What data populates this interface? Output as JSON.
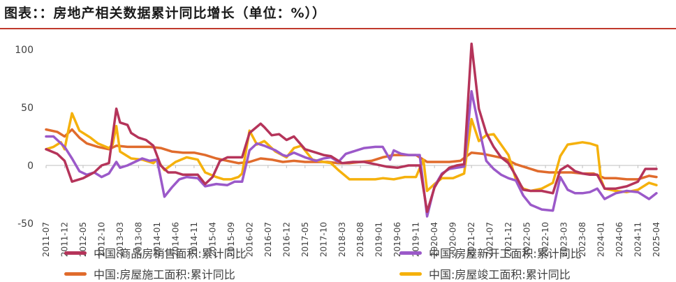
{
  "title": "图表：：房地产相关数据累计同比增长（单位：%））",
  "chart_data": {
    "type": "line",
    "ylim": [
      -50,
      105
    ],
    "yticks": [
      -50,
      0,
      50,
      100
    ],
    "x_start": "2011-07",
    "x_end": "2025-04",
    "xticks": [
      "2011-07",
      "2011-12",
      "2012-05",
      "2012-10",
      "2013-03",
      "2013-08",
      "2014-01",
      "2014-06",
      "2014-11",
      "2015-04",
      "2015-09",
      "2016-02",
      "2016-07",
      "2016-12",
      "2017-05",
      "2017-10",
      "2018-03",
      "2018-08",
      "2019-01",
      "2019-06",
      "2019-11",
      "2020-04",
      "2020-09",
      "2021-02",
      "2021-07",
      "2021-12",
      "2022-05",
      "2022-10",
      "2023-03",
      "2023-08",
      "2024-01",
      "2024-06",
      "2024-11",
      "2025-04"
    ],
    "series": [
      {
        "name": "中国:商品房销售面积:累计同比",
        "color": "#b5345a",
        "points": [
          [
            "2011-07",
            14
          ],
          [
            "2011-10",
            10
          ],
          [
            "2011-12",
            4
          ],
          [
            "2012-02",
            -14
          ],
          [
            "2012-05",
            -11
          ],
          [
            "2012-08",
            -6
          ],
          [
            "2012-10",
            0
          ],
          [
            "2012-12",
            2
          ],
          [
            "2013-02",
            49
          ],
          [
            "2013-03",
            37
          ],
          [
            "2013-05",
            35
          ],
          [
            "2013-06",
            28
          ],
          [
            "2013-08",
            24
          ],
          [
            "2013-10",
            22
          ],
          [
            "2013-12",
            17
          ],
          [
            "2014-02",
            -0.1
          ],
          [
            "2014-04",
            -6
          ],
          [
            "2014-06",
            -6
          ],
          [
            "2014-08",
            -8
          ],
          [
            "2014-10",
            -8
          ],
          [
            "2014-12",
            -8
          ],
          [
            "2015-02",
            -16
          ],
          [
            "2015-04",
            -10
          ],
          [
            "2015-06",
            4
          ],
          [
            "2015-08",
            7
          ],
          [
            "2015-10",
            7
          ],
          [
            "2015-12",
            7
          ],
          [
            "2016-02",
            28
          ],
          [
            "2016-05",
            36
          ],
          [
            "2016-06",
            33
          ],
          [
            "2016-08",
            26
          ],
          [
            "2016-10",
            27
          ],
          [
            "2016-12",
            22
          ],
          [
            "2017-02",
            25
          ],
          [
            "2017-05",
            14
          ],
          [
            "2017-08",
            11
          ],
          [
            "2017-10",
            9
          ],
          [
            "2017-12",
            8
          ],
          [
            "2018-03",
            2
          ],
          [
            "2018-06",
            3
          ],
          [
            "2018-09",
            3
          ],
          [
            "2018-12",
            1
          ],
          [
            "2019-03",
            -1
          ],
          [
            "2019-06",
            -2
          ],
          [
            "2019-09",
            0
          ],
          [
            "2019-12",
            0
          ],
          [
            "2020-02",
            -40
          ],
          [
            "2020-04",
            -19
          ],
          [
            "2020-06",
            -8
          ],
          [
            "2020-08",
            -2
          ],
          [
            "2020-10",
            0
          ],
          [
            "2020-12",
            1
          ],
          [
            "2021-02",
            105
          ],
          [
            "2021-04",
            49
          ],
          [
            "2021-06",
            28
          ],
          [
            "2021-08",
            16
          ],
          [
            "2021-10",
            7
          ],
          [
            "2021-12",
            2
          ],
          [
            "2022-02",
            -9
          ],
          [
            "2022-04",
            -21
          ],
          [
            "2022-06",
            -22
          ],
          [
            "2022-09",
            -22
          ],
          [
            "2022-12",
            -24
          ],
          [
            "2023-02",
            -4
          ],
          [
            "2023-04",
            0
          ],
          [
            "2023-06",
            -5
          ],
          [
            "2023-08",
            -7
          ],
          [
            "2023-10",
            -8
          ],
          [
            "2023-12",
            -8
          ],
          [
            "2024-02",
            -20
          ],
          [
            "2024-05",
            -20
          ],
          [
            "2024-08",
            -18
          ],
          [
            "2024-11",
            -14
          ],
          [
            "2025-01",
            -3
          ],
          [
            "2025-04",
            -3
          ]
        ]
      },
      {
        "name": "中国:房屋新开工面积:累计同比",
        "color": "#9b59c9",
        "points": [
          [
            "2011-07",
            25
          ],
          [
            "2011-09",
            25
          ],
          [
            "2011-12",
            16
          ],
          [
            "2012-02",
            6
          ],
          [
            "2012-04",
            -5
          ],
          [
            "2012-06",
            -8
          ],
          [
            "2012-08",
            -6
          ],
          [
            "2012-10",
            -10
          ],
          [
            "2012-12",
            -7
          ],
          [
            "2013-02",
            3
          ],
          [
            "2013-03",
            -2
          ],
          [
            "2013-05",
            0
          ],
          [
            "2013-07",
            3
          ],
          [
            "2013-09",
            6
          ],
          [
            "2013-11",
            4
          ],
          [
            "2014-01",
            5
          ],
          [
            "2014-03",
            -27
          ],
          [
            "2014-05",
            -19
          ],
          [
            "2014-07",
            -12
          ],
          [
            "2014-09",
            -10
          ],
          [
            "2014-12",
            -11
          ],
          [
            "2015-02",
            -18
          ],
          [
            "2015-05",
            -16
          ],
          [
            "2015-08",
            -17
          ],
          [
            "2015-10",
            -14
          ],
          [
            "2015-12",
            -14
          ],
          [
            "2016-02",
            13
          ],
          [
            "2016-04",
            19
          ],
          [
            "2016-06",
            17
          ],
          [
            "2016-09",
            13
          ],
          [
            "2016-11",
            9
          ],
          [
            "2016-12",
            8
          ],
          [
            "2017-02",
            11
          ],
          [
            "2017-05",
            7
          ],
          [
            "2017-08",
            4
          ],
          [
            "2017-10",
            6
          ],
          [
            "2017-12",
            7
          ],
          [
            "2018-02",
            3
          ],
          [
            "2018-04",
            10
          ],
          [
            "2018-06",
            12
          ],
          [
            "2018-09",
            15
          ],
          [
            "2018-12",
            16
          ],
          [
            "2019-02",
            16
          ],
          [
            "2019-04",
            5
          ],
          [
            "2019-05",
            13
          ],
          [
            "2019-07",
            10
          ],
          [
            "2019-09",
            9
          ],
          [
            "2019-12",
            9
          ],
          [
            "2020-02",
            -44
          ],
          [
            "2020-04",
            -18
          ],
          [
            "2020-06",
            -7
          ],
          [
            "2020-08",
            -3
          ],
          [
            "2020-10",
            -2
          ],
          [
            "2020-12",
            -1
          ],
          [
            "2021-02",
            64
          ],
          [
            "2021-04",
            33
          ],
          [
            "2021-06",
            4
          ],
          [
            "2021-08",
            -3
          ],
          [
            "2021-10",
            -8
          ],
          [
            "2021-12",
            -11
          ],
          [
            "2022-02",
            -13
          ],
          [
            "2022-04",
            -26
          ],
          [
            "2022-06",
            -34
          ],
          [
            "2022-09",
            -38
          ],
          [
            "2022-12",
            -39
          ],
          [
            "2023-02",
            -10
          ],
          [
            "2023-04",
            -21
          ],
          [
            "2023-06",
            -24
          ],
          [
            "2023-08",
            -24
          ],
          [
            "2023-10",
            -23
          ],
          [
            "2023-12",
            -20
          ],
          [
            "2024-02",
            -29
          ],
          [
            "2024-05",
            -24
          ],
          [
            "2024-08",
            -22
          ],
          [
            "2024-11",
            -23
          ],
          [
            "2025-02",
            -29
          ],
          [
            "2025-04",
            -24
          ]
        ]
      },
      {
        "name": "中国:房屋施工面积:累计同比",
        "color": "#e06b2c",
        "points": [
          [
            "2011-07",
            31
          ],
          [
            "2011-10",
            29
          ],
          [
            "2011-12",
            25
          ],
          [
            "2012-02",
            31
          ],
          [
            "2012-04",
            24
          ],
          [
            "2012-06",
            19
          ],
          [
            "2012-09",
            16
          ],
          [
            "2012-12",
            14
          ],
          [
            "2013-02",
            17
          ],
          [
            "2013-05",
            16
          ],
          [
            "2013-08",
            16
          ],
          [
            "2013-11",
            16
          ],
          [
            "2014-02",
            15
          ],
          [
            "2014-05",
            12
          ],
          [
            "2014-08",
            11
          ],
          [
            "2014-11",
            11
          ],
          [
            "2015-02",
            9
          ],
          [
            "2015-05",
            6
          ],
          [
            "2015-08",
            4
          ],
          [
            "2015-11",
            2
          ],
          [
            "2016-02",
            3
          ],
          [
            "2016-05",
            6
          ],
          [
            "2016-08",
            5
          ],
          [
            "2016-11",
            3
          ],
          [
            "2017-02",
            4
          ],
          [
            "2017-05",
            3
          ],
          [
            "2017-08",
            3
          ],
          [
            "2017-11",
            3
          ],
          [
            "2018-02",
            2
          ],
          [
            "2018-05",
            2
          ],
          [
            "2018-08",
            3
          ],
          [
            "2018-11",
            4
          ],
          [
            "2019-02",
            7
          ],
          [
            "2019-05",
            9
          ],
          [
            "2019-08",
            9
          ],
          [
            "2019-11",
            9
          ],
          [
            "2020-02",
            3
          ],
          [
            "2020-05",
            3
          ],
          [
            "2020-08",
            3
          ],
          [
            "2020-11",
            4
          ],
          [
            "2021-02",
            11
          ],
          [
            "2021-05",
            10
          ],
          [
            "2021-08",
            8
          ],
          [
            "2021-11",
            6
          ],
          [
            "2022-02",
            1
          ],
          [
            "2022-05",
            -2
          ],
          [
            "2022-08",
            -5
          ],
          [
            "2022-11",
            -6
          ],
          [
            "2023-02",
            -6
          ],
          [
            "2023-05",
            -6
          ],
          [
            "2023-08",
            -7
          ],
          [
            "2023-11",
            -7
          ],
          [
            "2024-02",
            -11
          ],
          [
            "2024-05",
            -11
          ],
          [
            "2024-08",
            -12
          ],
          [
            "2024-11",
            -12
          ],
          [
            "2025-02",
            -9
          ],
          [
            "2025-04",
            -10
          ]
        ]
      },
      {
        "name": "中国:房屋竣工面积:累计同比",
        "color": "#f5b10c",
        "points": [
          [
            "2011-07",
            14
          ],
          [
            "2011-09",
            16
          ],
          [
            "2011-11",
            20
          ],
          [
            "2011-12",
            14
          ],
          [
            "2012-01",
            30
          ],
          [
            "2012-02",
            45
          ],
          [
            "2012-04",
            30
          ],
          [
            "2012-07",
            24
          ],
          [
            "2012-09",
            19
          ],
          [
            "2012-12",
            15
          ],
          [
            "2013-01",
            18
          ],
          [
            "2013-02",
            34
          ],
          [
            "2013-03",
            12
          ],
          [
            "2013-06",
            6
          ],
          [
            "2013-09",
            5
          ],
          [
            "2013-12",
            2
          ],
          [
            "2014-01",
            5
          ],
          [
            "2014-03",
            -4
          ],
          [
            "2014-06",
            3
          ],
          [
            "2014-09",
            7
          ],
          [
            "2014-12",
            5
          ],
          [
            "2015-02",
            -6
          ],
          [
            "2015-05",
            -10
          ],
          [
            "2015-07",
            -12
          ],
          [
            "2015-09",
            -12
          ],
          [
            "2015-11",
            -10
          ],
          [
            "2015-12",
            -7
          ],
          [
            "2016-02",
            30
          ],
          [
            "2016-04",
            18
          ],
          [
            "2016-06",
            21
          ],
          [
            "2016-09",
            12
          ],
          [
            "2016-12",
            7
          ],
          [
            "2017-02",
            15
          ],
          [
            "2017-04",
            17
          ],
          [
            "2017-07",
            5
          ],
          [
            "2017-10",
            3
          ],
          [
            "2017-12",
            2
          ],
          [
            "2018-02",
            -4
          ],
          [
            "2018-05",
            -12
          ],
          [
            "2018-08",
            -12
          ],
          [
            "2018-12",
            -12
          ],
          [
            "2019-02",
            -11
          ],
          [
            "2019-05",
            -12
          ],
          [
            "2019-08",
            -10
          ],
          [
            "2019-11",
            -10
          ],
          [
            "2020-01",
            5
          ],
          [
            "2020-02",
            -22
          ],
          [
            "2020-04",
            -16
          ],
          [
            "2020-06",
            -11
          ],
          [
            "2020-09",
            -11
          ],
          [
            "2020-12",
            -7
          ],
          [
            "2021-02",
            40
          ],
          [
            "2021-04",
            21
          ],
          [
            "2021-06",
            26
          ],
          [
            "2021-08",
            27
          ],
          [
            "2021-10",
            18
          ],
          [
            "2021-12",
            9
          ],
          [
            "2022-02",
            -12
          ],
          [
            "2022-04",
            -20
          ],
          [
            "2022-06",
            -22
          ],
          [
            "2022-09",
            -20
          ],
          [
            "2022-12",
            -15
          ],
          [
            "2023-02",
            8
          ],
          [
            "2023-04",
            18
          ],
          [
            "2023-06",
            19
          ],
          [
            "2023-08",
            20
          ],
          [
            "2023-10",
            19
          ],
          [
            "2023-12",
            17
          ],
          [
            "2024-01",
            -12
          ],
          [
            "2024-02",
            -20
          ],
          [
            "2024-05",
            -22
          ],
          [
            "2024-08",
            -23
          ],
          [
            "2024-11",
            -21
          ],
          [
            "2025-02",
            -15
          ],
          [
            "2025-04",
            -17
          ]
        ]
      }
    ]
  }
}
